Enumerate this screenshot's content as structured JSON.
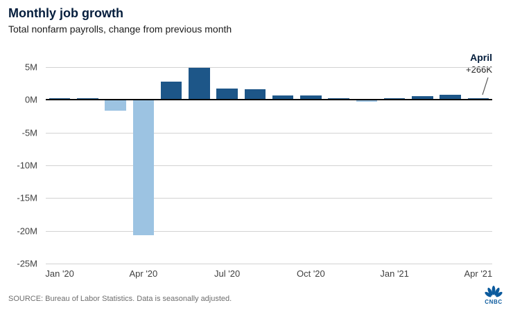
{
  "header": {
    "title": "Monthly job growth",
    "subtitle": "Total nonfarm payrolls, change from previous month"
  },
  "annotation": {
    "label": "April",
    "value": "+266K"
  },
  "footer": {
    "source": "SOURCE: Bureau of Labor Statistics. Data is seasonally adjusted."
  },
  "logo": {
    "text": "CNBC"
  },
  "colors": {
    "bar_positive": "#1d5688",
    "bar_negative": "#9cc3e2",
    "zero_line": "#000000",
    "gridline": "#d2d2d2",
    "title_navy": "#041d3c",
    "logo_blue": "#0b5a9d"
  },
  "chart_data": {
    "type": "bar",
    "title": "Monthly job growth",
    "subtitle": "Total nonfarm payrolls, change from previous month",
    "unit": "millions of jobs, change from previous month",
    "x": [
      "Jan '20",
      "Feb '20",
      "Mar '20",
      "Apr '20",
      "May '20",
      "Jun '20",
      "Jul '20",
      "Aug '20",
      "Sep '20",
      "Oct '20",
      "Nov '20",
      "Dec '20",
      "Jan '21",
      "Feb '21",
      "Mar '21",
      "Apr '21"
    ],
    "values": [
      0.21,
      0.27,
      -1.68,
      -20.68,
      2.83,
      4.85,
      1.73,
      1.58,
      0.72,
      0.68,
      0.26,
      -0.31,
      0.23,
      0.54,
      0.77,
      0.27
    ],
    "ylim": [
      -25,
      5
    ],
    "y_ticks": [
      5,
      0,
      -5,
      -10,
      -15,
      -20,
      -25
    ],
    "y_tick_labels": [
      "5M",
      "0M",
      "-5M",
      "-10M",
      "-15M",
      "-20M",
      "-25M"
    ],
    "x_tick_indices": [
      0,
      3,
      6,
      9,
      12,
      15
    ],
    "x_tick_labels": [
      "Jan '20",
      "Apr '20",
      "Jul '20",
      "Oct '20",
      "Jan '21",
      "Apr '21"
    ],
    "grid": true,
    "legend": false,
    "annotation": {
      "x": "Apr '21",
      "label": "April",
      "value_label": "+266K",
      "value": 0.266
    }
  }
}
